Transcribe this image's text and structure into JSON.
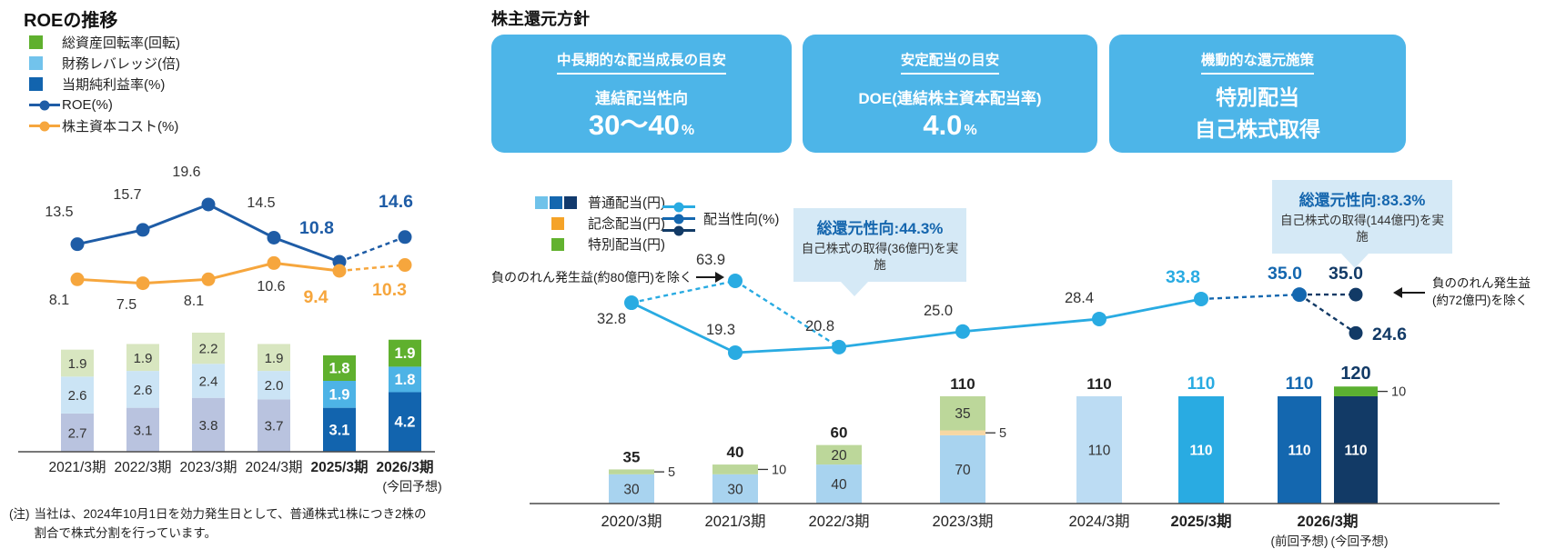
{
  "left": {
    "title": "ROEの推移",
    "legend": [
      {
        "label": "総資産回転率(回転)",
        "color": "#5fb02e",
        "marker": "square"
      },
      {
        "label": "財務レバレッジ(倍)",
        "color": "#72c3ec",
        "marker": "square"
      },
      {
        "label": "当期純利益率(%)",
        "color": "#1264ae",
        "marker": "square"
      },
      {
        "label": "ROE(%)",
        "color": "#1e5ca6",
        "marker": "line"
      },
      {
        "label": "株主資本コスト(%)",
        "color": "#f6a63d",
        "marker": "line"
      }
    ],
    "note_prefix": "(注)",
    "note_line1": "当社は、2024年10月1日を効力発生日として、普通株式1株につき2株の",
    "note_line2": "割合で株式分割を行っています。"
  },
  "right": {
    "title": "株主還元方針",
    "policy_boxes": [
      {
        "heading": "中長期的な配当成長の目安",
        "subtitle": "連結配当性向",
        "value": "30〜40",
        "unit": "%"
      },
      {
        "heading": "安定配当の目安",
        "subtitle": "DOE(連結株主資本配当率)",
        "value": "4.0",
        "unit": "%"
      },
      {
        "heading": "機動的な還元施策",
        "line1": "特別配当",
        "line2": "自己株式取得"
      }
    ],
    "legend": {
      "ordinary_label": "普通配当(円)",
      "ordinary_colors": [
        "#6fc2ea",
        "#1467af",
        "#123a6d"
      ],
      "commemorative_label": "記念配当(円)",
      "commemorative_color": "#f5a328",
      "special_label": "特別配当(円)",
      "special_color": "#62b22f",
      "payout_label": "配当性向(%)",
      "payout_colors": [
        "#29abe2",
        "#1467af",
        "#123a66"
      ]
    },
    "callout_2022": {
      "title": "総還元性向:44.3%",
      "body": "自己株式の取得(36億円)を実施"
    },
    "callout_2026": {
      "title": "総還元性向:83.3%",
      "body": "自己株式の取得(144億円)を実施"
    },
    "annotation_2021": "負ののれん発生益(約80億円)を除く",
    "annotation_2026_line1": "負ののれん発生益",
    "annotation_2026_line2": "(約72億円)を除く"
  },
  "chart_data": [
    {
      "type": "bar",
      "subtype": "stacked-bar-with-lines",
      "title": "ROEの推移",
      "categories": [
        "2021/3期",
        "2022/3期",
        "2023/3期",
        "2024/3期",
        "2025/3期",
        "2026/3期"
      ],
      "category_note": "(今回予想)",
      "forecast_start_index": 4,
      "bar_series": [
        {
          "name": "当期純利益率(%)",
          "values": [
            2.7,
            3.1,
            3.8,
            3.7,
            3.1,
            4.2
          ]
        },
        {
          "name": "財務レバレッジ(倍)",
          "values": [
            2.6,
            2.6,
            2.4,
            2.0,
            1.9,
            1.8
          ]
        },
        {
          "name": "総資産回転率(回転)",
          "values": [
            1.9,
            1.9,
            2.2,
            1.9,
            1.8,
            1.9
          ]
        }
      ],
      "line_series": [
        {
          "name": "ROE(%)",
          "values": [
            13.5,
            15.7,
            19.6,
            14.5,
            10.8,
            14.6
          ]
        },
        {
          "name": "株主資本コスト(%)",
          "values": [
            8.1,
            7.5,
            8.1,
            10.6,
            9.4,
            10.3
          ]
        }
      ],
      "grid": false
    },
    {
      "type": "bar",
      "subtype": "stacked-bar-with-line",
      "title": "株主還元方針",
      "unit": "円",
      "categories": [
        "2020/3期",
        "2021/3期",
        "2022/3期",
        "2023/3期",
        "2024/3期",
        "2025/3期",
        "2026/3期"
      ],
      "category_notes": [
        "(前回予想)",
        "(今回予想)"
      ],
      "bars": [
        {
          "category": "2020/3期",
          "total": 35,
          "segments": [
            {
              "name": "普通配当",
              "value": 30
            },
            {
              "name": "特別配当",
              "value": 5,
              "tick": true
            }
          ]
        },
        {
          "category": "2021/3期",
          "total": 40,
          "segments": [
            {
              "name": "普通配当",
              "value": 30
            },
            {
              "name": "特別配当",
              "value": 10,
              "tick": true
            }
          ]
        },
        {
          "category": "2022/3期",
          "total": 60,
          "segments": [
            {
              "name": "普通配当",
              "value": 40
            },
            {
              "name": "特別配当",
              "value": 20
            }
          ]
        },
        {
          "category": "2023/3期",
          "total": 110,
          "segments": [
            {
              "name": "普通配当",
              "value": 70
            },
            {
              "name": "記念配当",
              "value": 5,
              "tick": true
            },
            {
              "name": "特別配当",
              "value": 35
            }
          ]
        },
        {
          "category": "2024/3期",
          "total": 110,
          "segments": [
            {
              "name": "普通配当",
              "value": 110
            }
          ]
        },
        {
          "category": "2025/3期",
          "total": 110,
          "segments": [
            {
              "name": "普通配当",
              "value": 110
            }
          ]
        },
        {
          "category": "2026/3期(前回予想)",
          "total": 110,
          "segments": [
            {
              "name": "普通配当",
              "value": 110
            }
          ]
        },
        {
          "category": "2026/3期(今回予想)",
          "total": 120,
          "segments": [
            {
              "name": "普通配当",
              "value": 110
            },
            {
              "name": "特別配当",
              "value": 10,
              "tick": true
            }
          ]
        }
      ],
      "payout_ratio": {
        "name": "配当性向(%)",
        "actual": [
          32.8,
          19.3,
          20.8,
          25.0,
          28.4,
          33.8
        ],
        "excl_negative_goodwill_fy2021": 63.9,
        "fy2026_previous_forecast": 35.0,
        "fy2026_current_forecast_excl_negative_goodwill": 35.0,
        "fy2026_current_forecast": 24.6
      }
    }
  ]
}
